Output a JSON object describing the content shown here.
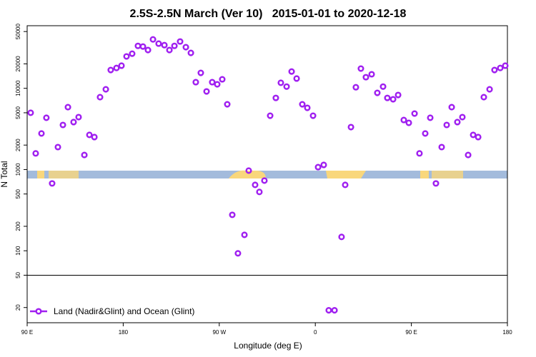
{
  "chart_data": {
    "type": "scatter",
    "title": "2.5S-2.5N March (Ver 10)   2015-01-01 to 2020-12-18",
    "xlabel": "Longitude (deg E)",
    "ylabel": "N Total",
    "log_y": true,
    "legend": "bottom-left",
    "xlim": [
      90,
      540
    ],
    "xticks": [
      {
        "value": 90,
        "label": "90 E"
      },
      {
        "value": 180,
        "label": "180"
      },
      {
        "value": 270,
        "label": "90 W"
      },
      {
        "value": 360,
        "label": "0"
      },
      {
        "value": 450,
        "label": "90 E"
      },
      {
        "value": 540,
        "label": "180"
      }
    ],
    "ylim": [
      13,
      59000
    ],
    "yticks": [
      20,
      50,
      100,
      200,
      500,
      1000,
      2000,
      5000,
      10000,
      20000,
      50000
    ],
    "hline": 50,
    "series": [
      {
        "name": "Land (Nadir&Glint) and Ocean (Glint)",
        "color": "#a020f0",
        "x": [
          93.3,
          98,
          103.4,
          108,
          113.4,
          118.8,
          123.5,
          128.2,
          133.5,
          138.2,
          143.6,
          148.3,
          153,
          158.3,
          163.7,
          168.3,
          173.7,
          178.4,
          183.1,
          188.4,
          193.8,
          198.5,
          203.2,
          207.9,
          213.2,
          218.6,
          223.3,
          228,
          233.3,
          238.7,
          243.4,
          248,
          252.7,
          258.1,
          263.4,
          268.1,
          272.8,
          277.5,
          282.2,
          287.5,
          293.6,
          297.6,
          303.6,
          307.6,
          312.3,
          317.7,
          323,
          327.7,
          333.1,
          337.8,
          342.5,
          347.8,
          352.5,
          357.9,
          362.6,
          367.9,
          372.6,
          378,
          384.6,
          388,
          393.4,
          398,
          402.7,
          407.4,
          412.8,
          418.1,
          423.5,
          427.5,
          432.9,
          437.6,
          442.9,
          447.6,
          453,
          457.6,
          463,
          467.7,
          473,
          478.4,
          483.1,
          487.8,
          493.1,
          497.8,
          503.2,
          507.9,
          512.6,
          517.9,
          523.3,
          527.9,
          533.3,
          538
        ],
        "values": [
          5000,
          1580,
          2780,
          4340,
          675,
          1890,
          3540,
          5860,
          3840,
          4420,
          1510,
          2670,
          2510,
          7780,
          9720,
          16800,
          17800,
          19000,
          24700,
          26700,
          33300,
          32700,
          29600,
          40000,
          35500,
          34000,
          29600,
          33300,
          37700,
          32100,
          27300,
          11900,
          15500,
          9160,
          11900,
          11200,
          12900,
          6360,
          277,
          93,
          157,
          970,
          647,
          530,
          731,
          4600,
          7620,
          11700,
          10500,
          16100,
          13200,
          6360,
          5750,
          4600,
          1070,
          1140,
          18.5,
          18.5,
          148,
          647,
          3330,
          10300,
          17500,
          13700,
          14900,
          8790,
          10500,
          7620,
          7330,
          8280,
          4070,
          3760,
          4890,
          1580,
          2780,
          4340,
          675,
          1890,
          3540,
          5860,
          3840,
          4420,
          1510,
          2670,
          2510,
          7780,
          9720,
          16800,
          17800,
          19000
        ]
      }
    ]
  }
}
